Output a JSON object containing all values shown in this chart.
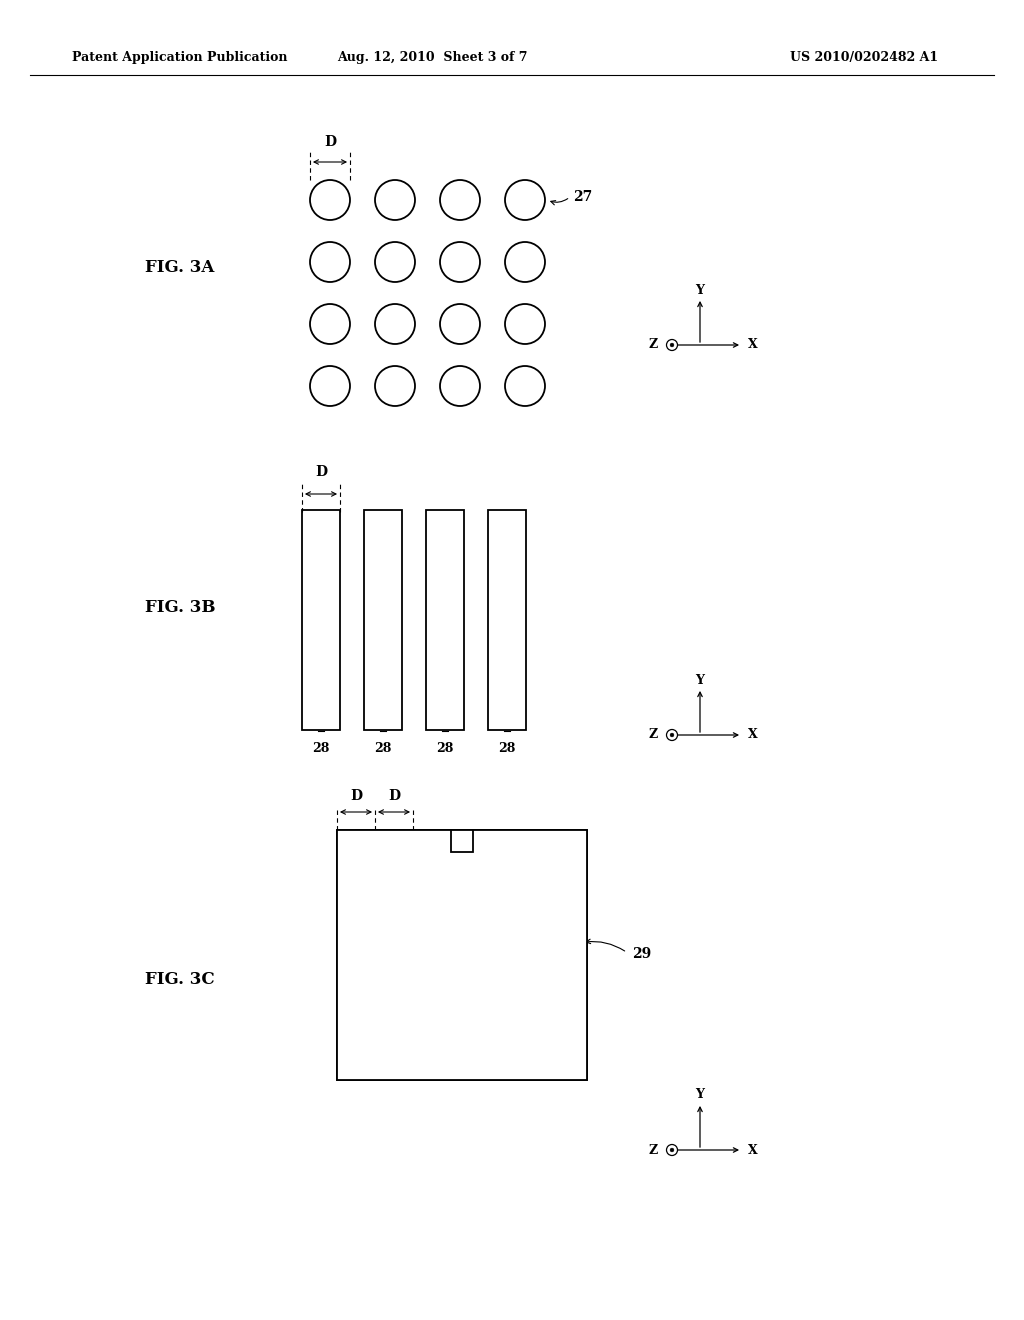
{
  "header_left": "Patent Application Publication",
  "header_mid": "Aug. 12, 2010  Sheet 3 of 7",
  "header_right": "US 2010/0202482 A1",
  "fig3a_label": "FIG. 3A",
  "fig3b_label": "FIG. 3B",
  "fig3c_label": "FIG. 3C",
  "label_27": "27",
  "label_28": "28",
  "label_29": "29",
  "label_D": "D",
  "bg_color": "#ffffff",
  "line_color": "#000000"
}
